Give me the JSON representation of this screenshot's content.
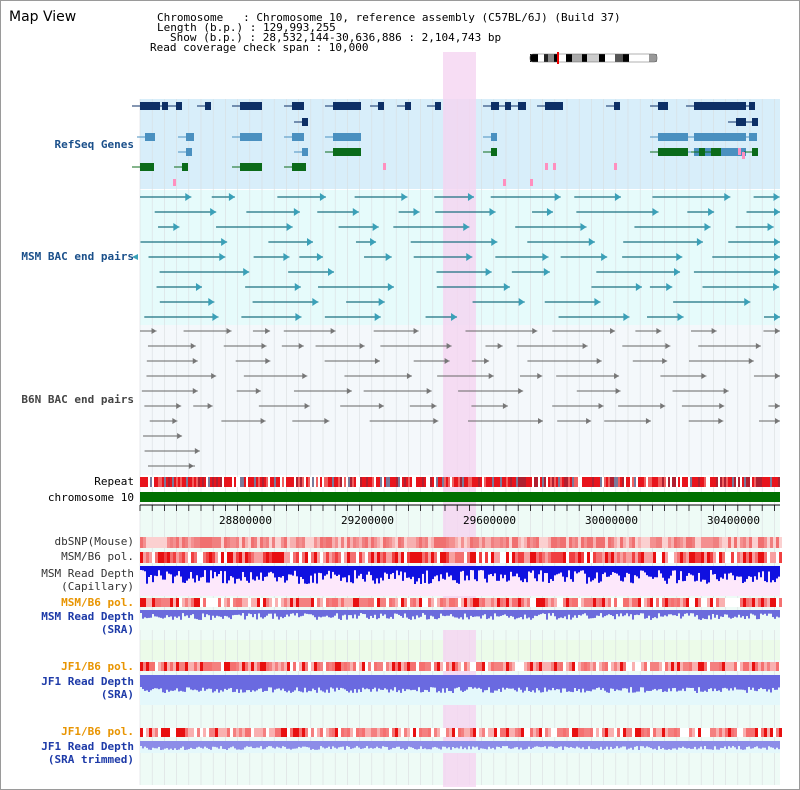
{
  "app": {
    "title": "Map View"
  },
  "header": {
    "chromosome_label": "Chromosome   : Chromosome 10, reference assembly (C57BL/6J) (Build 37)",
    "length_label": "Length (b.p.) : 129,993,255",
    "show_label": "Show (b.p.) : 28,532,144-30,636,886 : 2,104,743 bp",
    "coverage_label": "Read coverage check span : 10,000"
  },
  "tracks": {
    "refseq": "RefSeq Genes",
    "msm_bac": "MSM BAC end pairs",
    "b6n_bac": "B6N BAC end pairs",
    "repeat": "Repeat",
    "chromosome": "chromosome 10",
    "dbsnp": "dbSNP(Mouse)",
    "msm_b6_pol": "MSM/B6 pol.",
    "msm_depth_cap_1": "MSM Read Depth",
    "msm_depth_cap_2": "(Capillary)",
    "msm_b6_pol_2": "MSM/B6 pol.",
    "msm_depth_sra_1": "MSM Read Depth",
    "msm_depth_sra_2": "(SRA)",
    "jf1_b6_pol": "JF1/B6 pol.",
    "jf1_depth_sra_1": "JF1 Read Depth",
    "jf1_depth_sra_2": "(SRA)",
    "jf1_b6_pol_2": "JF1/B6 pol.",
    "jf1_depth_trim_1": "JF1 Read Depth",
    "jf1_depth_trim_2": "(SRA trimmed)"
  },
  "ruler": {
    "ticks": [
      "28800000",
      "29200000",
      "29600000",
      "30000000",
      "30400000"
    ]
  },
  "colors": {
    "refseq_bg": "#d8eefa",
    "bac_bg": "#e6fbfb",
    "b6n_bg": "#f4f8fb",
    "highlight": "#f5d4f1",
    "msm_label": "#1a4f8a",
    "orange_label": "#e89400",
    "blue_label": "#1d3aa8",
    "chromosome_bar": "#007000"
  }
}
